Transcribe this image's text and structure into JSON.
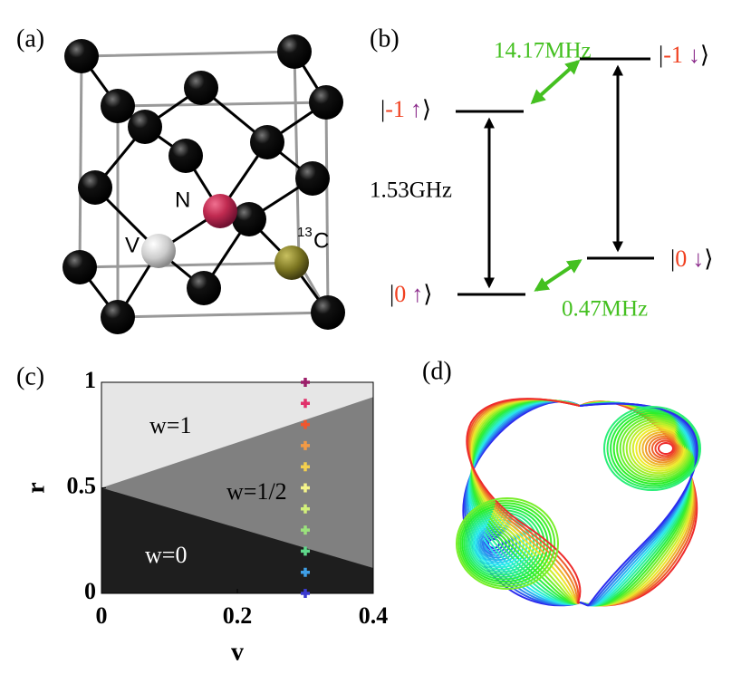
{
  "panels": {
    "a": "(a)",
    "b": "(b)",
    "c": "(c)",
    "d": "(d)"
  },
  "crystal": {
    "nitrogen": "N",
    "vacancy": "V",
    "carbon_isotope": "13",
    "carbon": "C"
  },
  "levels": {
    "transitions": {
      "upper": "14.17MHz",
      "vertical": "1.53GHz",
      "lower": "0.47MHz"
    },
    "states": [
      {
        "open": "|",
        "number": "-1",
        "spin": "↑",
        "close": "⟩"
      },
      {
        "open": "|",
        "number": "-1",
        "spin": "↓",
        "close": "⟩"
      },
      {
        "open": "|",
        "number": "0",
        "spin": "↑",
        "close": "⟩"
      },
      {
        "open": "|",
        "number": "0",
        "spin": "↓",
        "close": "⟩"
      }
    ]
  },
  "chart_data": {
    "type": "phase",
    "x_label": "v",
    "y_label": "r",
    "xlim": [
      0,
      0.4
    ],
    "ylim": [
      0,
      1
    ],
    "xticks": [
      0,
      0.2,
      0.4
    ],
    "yticks": [
      0,
      0.5,
      1
    ],
    "boundaries": {
      "upper": {
        "v": [
          0,
          0.4
        ],
        "r": [
          0.5,
          0.93
        ]
      },
      "lower": {
        "v": [
          0,
          0.4
        ],
        "r": [
          0.5,
          0.12
        ]
      }
    },
    "region_labels": [
      "w=1",
      "w=1/2",
      "w=0"
    ],
    "region_colors": [
      "#e6e6e6",
      "#808080",
      "#1e1e1e"
    ],
    "series": [
      {
        "x": [
          0.3,
          0.3,
          0.3,
          0.3,
          0.3,
          0.3,
          0.3,
          0.3,
          0.3,
          0.3,
          0.3
        ],
        "values": [
          0,
          0.1,
          0.2,
          0.3,
          0.4,
          0.5,
          0.6,
          0.7,
          0.8,
          0.9,
          1
        ],
        "colors": [
          "#3a3ad0",
          "#3f9fe6",
          "#5fd88a",
          "#9be27c",
          "#d2f07a",
          "#f4f48a",
          "#f3cf4e",
          "#f39a45",
          "#f0562e",
          "#e0306a",
          "#9c1f6a"
        ]
      }
    ]
  }
}
